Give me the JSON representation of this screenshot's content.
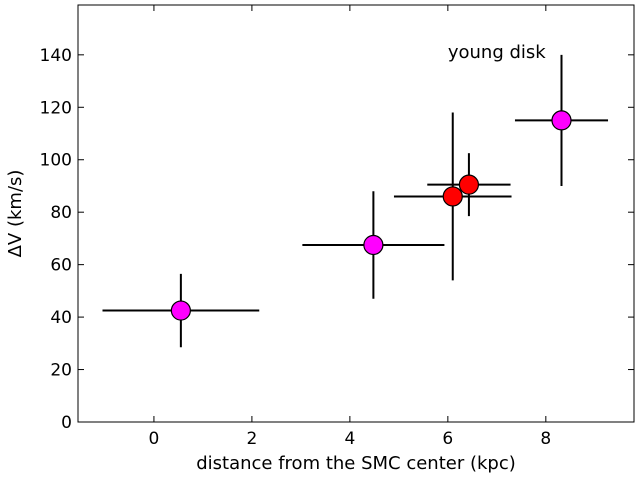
{
  "chart_data": {
    "type": "scatter",
    "title": "",
    "xlabel": "distance from the SMC center (kpc)",
    "ylabel": "ΔV (km/s)",
    "xlim": [
      -1.55,
      9.8
    ],
    "ylim": [
      0,
      159
    ],
    "xticks": [
      0,
      2,
      4,
      6,
      8
    ],
    "yticks": [
      0,
      20,
      40,
      60,
      80,
      100,
      120,
      140
    ],
    "grid": false,
    "annotations": [
      {
        "text": "young disk",
        "x": 6.0,
        "y": 141
      }
    ],
    "series": [
      {
        "name": "magenta",
        "color": "#ff00ff",
        "points": [
          {
            "x": 0.55,
            "y": 42.5,
            "xerr": [
              1.6,
              1.6
            ],
            "yerr": [
              14,
              14
            ]
          },
          {
            "x": 4.48,
            "y": 67.5,
            "xerr": [
              1.45,
              1.45
            ],
            "yerr": [
              20.5,
              20.5
            ]
          },
          {
            "x": 8.32,
            "y": 115.0,
            "xerr": [
              0.95,
              0.95
            ],
            "yerr": [
              25,
              25
            ]
          }
        ]
      },
      {
        "name": "red",
        "color": "#ff0000",
        "points": [
          {
            "x": 6.1,
            "y": 86.0,
            "xerr": [
              1.2,
              1.2
            ],
            "yerr": [
              32,
              32
            ]
          },
          {
            "x": 6.43,
            "y": 90.5,
            "xerr": [
              0.85,
              0.85
            ],
            "yerr": [
              12,
              12
            ]
          }
        ]
      }
    ]
  }
}
